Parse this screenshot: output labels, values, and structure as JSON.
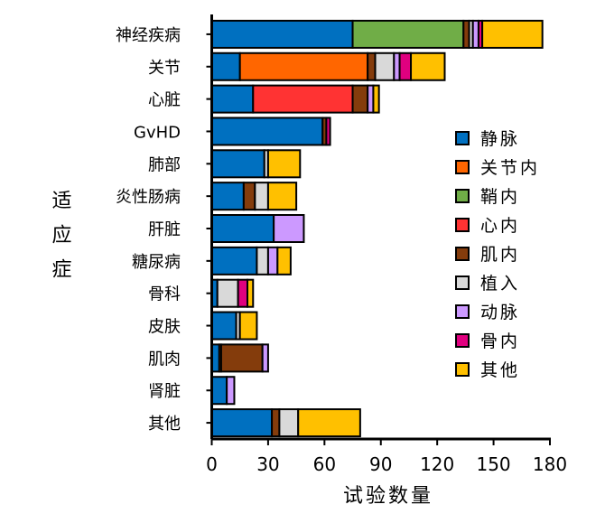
{
  "chart_data": {
    "type": "bar",
    "orientation": "horizontal",
    "stacked": true,
    "xlabel": "试验数量",
    "ylabel": "适应症",
    "xlim": [
      0,
      180
    ],
    "xticks": [
      "0",
      "30",
      "60",
      "90",
      "120",
      "150",
      "180"
    ],
    "grid": false,
    "legend_position": "right",
    "categories": [
      "神经疾病",
      "关节",
      "心脏",
      "GvHD",
      "肺部",
      "炎性肠病",
      "肝脏",
      "糖尿病",
      "骨科",
      "皮肤",
      "肌肉",
      "肾脏",
      "其他"
    ],
    "series": [
      {
        "name": "静脉",
        "color": "#0070C0",
        "values": [
          75,
          15,
          22,
          59,
          28,
          17,
          33,
          24,
          3,
          13,
          4,
          8,
          32
        ]
      },
      {
        "name": "关节内",
        "color": "#FF6600",
        "values": [
          0,
          68,
          0,
          0,
          0,
          0,
          0,
          0,
          0,
          0,
          1,
          0,
          0
        ]
      },
      {
        "name": "鞘内",
        "color": "#70AD47",
        "values": [
          59,
          0,
          0,
          0,
          0,
          0,
          0,
          0,
          0,
          0,
          0,
          0,
          0
        ]
      },
      {
        "name": "心内",
        "color": "#FF3333",
        "values": [
          0,
          0,
          53,
          0,
          0,
          0,
          0,
          0,
          0,
          0,
          0,
          0,
          0
        ]
      },
      {
        "name": "肌内",
        "color": "#843C0C",
        "values": [
          3,
          4,
          8,
          2,
          0,
          6,
          0,
          0,
          0,
          0,
          22,
          0,
          4
        ]
      },
      {
        "name": "植入",
        "color": "#D9D9D9",
        "values": [
          2,
          10,
          0,
          0,
          2,
          7,
          0,
          6,
          11,
          2,
          0,
          0,
          10
        ]
      },
      {
        "name": "动脉",
        "color": "#CC99FF",
        "values": [
          3,
          3,
          3,
          0,
          0,
          0,
          16,
          5,
          0,
          0,
          3,
          4,
          0
        ]
      },
      {
        "name": "骨内",
        "color": "#E0007F",
        "values": [
          2,
          6,
          0,
          2,
          0,
          0,
          0,
          0,
          5,
          0,
          0,
          0,
          0
        ]
      },
      {
        "name": "其他",
        "color": "#FFC000",
        "values": [
          32,
          18,
          3,
          0,
          17,
          15,
          0,
          7,
          3,
          9,
          0,
          0,
          33
        ]
      }
    ]
  }
}
